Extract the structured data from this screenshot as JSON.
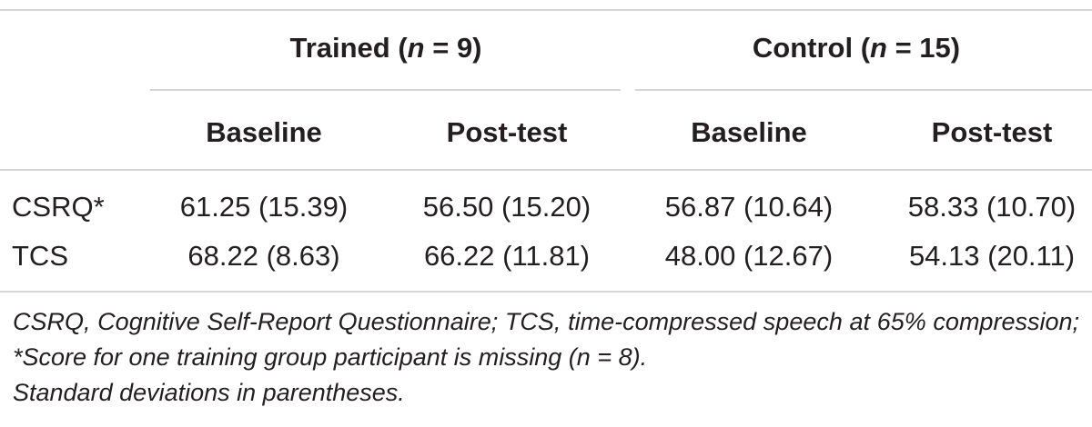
{
  "table": {
    "groups": [
      {
        "label": "Trained (",
        "var": "n",
        "rest": " = 9)"
      },
      {
        "label": "Control (",
        "var": "n",
        "rest": " = 15)"
      }
    ],
    "subheaders": [
      "Baseline",
      "Post-test",
      "Baseline",
      "Post-test"
    ],
    "rows": [
      {
        "label": "CSRQ*",
        "cells": [
          "61.25 (15.39)",
          "56.50 (15.20)",
          "56.87 (10.64)",
          "58.33 (10.70)"
        ]
      },
      {
        "label": "TCS",
        "cells": [
          "68.22 (8.63)",
          "66.22 (11.81)",
          "48.00 (12.67)",
          "54.13 (20.11)"
        ]
      }
    ]
  },
  "footnote": {
    "line1": "CSRQ, Cognitive Self-Report Questionnaire; TCS, time-compressed speech at 65% compression; *Score for one training group participant is missing (n = 8).",
    "line2": "Standard deviations in parentheses."
  }
}
